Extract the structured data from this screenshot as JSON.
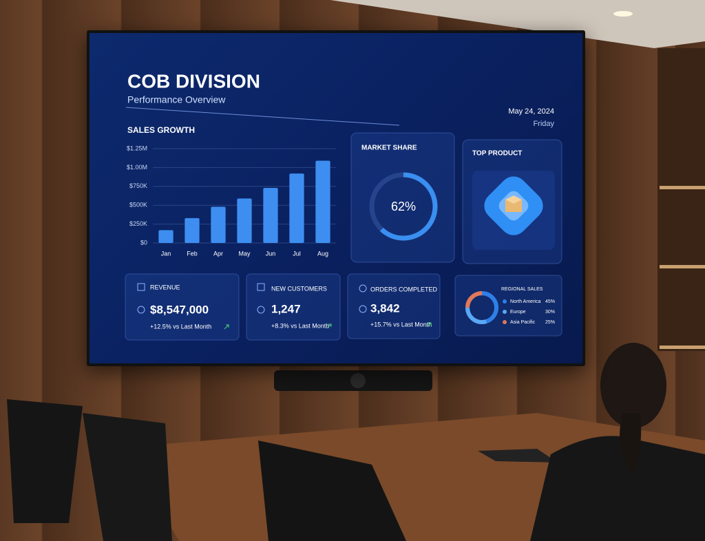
{
  "header": {
    "title": "COB DIVISION",
    "subtitle": "Performance Overview",
    "date": "May 24, 2024",
    "day": "Friday"
  },
  "chart_data": [
    {
      "type": "bar",
      "title": "SALES GROWTH",
      "categories": [
        "Jan",
        "Feb",
        "Apr",
        "May",
        "Jun",
        "Jul",
        "Aug"
      ],
      "values": [
        170000,
        330000,
        480000,
        590000,
        730000,
        920000,
        1090000
      ],
      "color": "#3d8ef0",
      "ylim": [
        0,
        1250000
      ],
      "yticks": [
        {
          "value": 0,
          "label": "$0"
        },
        {
          "value": 250000,
          "label": "$250K"
        },
        {
          "value": 500000,
          "label": "$500K"
        },
        {
          "value": 750000,
          "label": "$750K"
        },
        {
          "value": 1000000,
          "label": "$1.00M"
        },
        {
          "value": 1250000,
          "label": "$1.25M"
        }
      ],
      "grid": true
    },
    {
      "type": "donut",
      "title": "MARKET SHARE",
      "values": [
        62
      ],
      "value_labels": [
        "62%"
      ],
      "color": "#3a8ff0"
    },
    {
      "type": "donut",
      "title": "REGIONAL SALES",
      "categories": [
        "North America",
        "Europe",
        "Asia Pacific"
      ],
      "values": [
        45,
        30,
        25
      ],
      "value_labels": [
        "45%",
        "30%",
        "25%"
      ],
      "colors": [
        "#2f7fe8",
        "#5aa8f5",
        "#e0785a"
      ]
    }
  ],
  "top_product": {
    "title": "TOP PRODUCT"
  },
  "kpis": [
    {
      "label": "REVENUE",
      "value": "$8,547,000",
      "change": "+12.5% vs Last Month"
    },
    {
      "label": "NEW CUSTOMERS",
      "value": "1,247",
      "change": "+8.3% vs Last Month"
    },
    {
      "label": "ORDERS COMPLETED",
      "value": "3,842",
      "change": "+15.7% vs Last Month"
    }
  ]
}
